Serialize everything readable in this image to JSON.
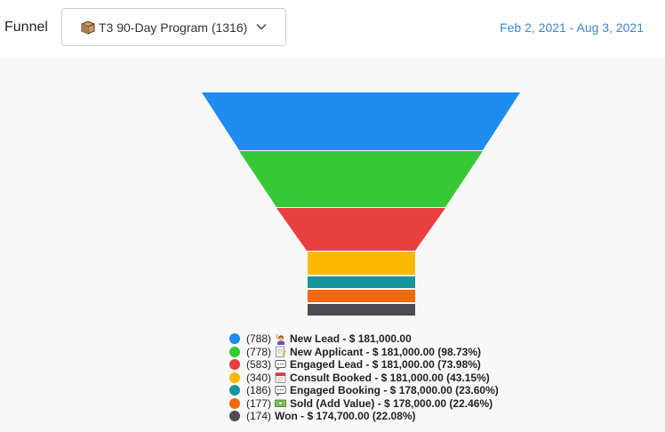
{
  "header": {
    "label": "Funnel",
    "pipeline_select": {
      "value": "T3 90-Day Program (1316)",
      "icon": "package-icon"
    },
    "date_range": "Feb 2, 2021 - Aug 3, 2021"
  },
  "chart_data": {
    "type": "funnel",
    "stages": [
      {
        "count": "(788)",
        "emoji": "person-raising-hand",
        "label": "New Lead - $ 181,000.00",
        "value": 788,
        "color": "#1e8cf0"
      },
      {
        "count": "(778)",
        "emoji": "memo",
        "label": "New Applicant - $ 181,000.00 (98.73%)",
        "value": 778,
        "color": "#35c935"
      },
      {
        "count": "(583)",
        "emoji": "speech-bubble",
        "label": "Engaged Lead - $ 181,000.00 (73.98%)",
        "value": 583,
        "color": "#e83f3f"
      },
      {
        "count": "(340)",
        "emoji": "calendar",
        "label": "Consult Booked - $ 181,000.00 (43.15%)",
        "value": 340,
        "color": "#fdb900"
      },
      {
        "count": "(186)",
        "emoji": "speech-bubble",
        "label": "Engaged Booking - $ 178,000.00 (23.60%)",
        "value": 186,
        "color": "#17949e"
      },
      {
        "count": "(177)",
        "emoji": "dollar-banknote",
        "label": "Sold (Add Value) - $ 178,000.00 (22.46%)",
        "value": 177,
        "color": "#f06a0d"
      },
      {
        "count": "(174)",
        "emoji": "",
        "label": "Won - $ 174,700.00 (22.08%)",
        "value": 174,
        "color": "#4b4c52"
      }
    ]
  }
}
